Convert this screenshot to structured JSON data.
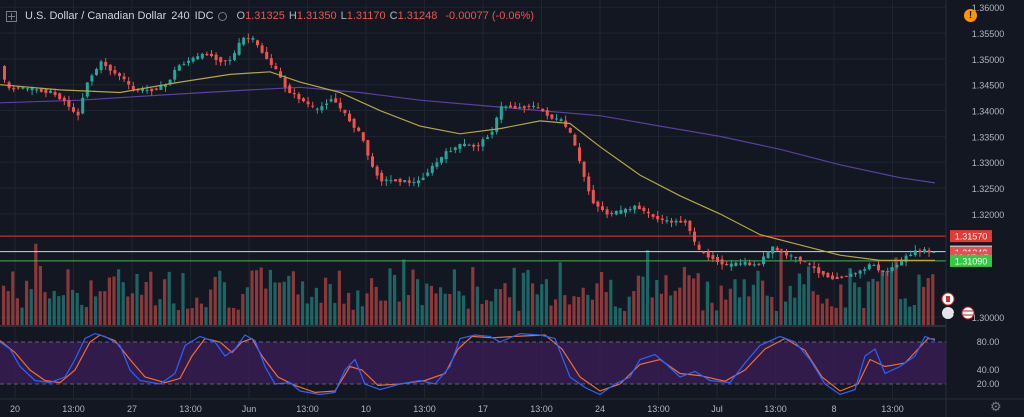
{
  "legend": {
    "symbol": "U.S. Dollar / Canadian Dollar",
    "interval": "240",
    "source": "IDC",
    "open_label": "O",
    "open": "1.31325",
    "high_label": "H",
    "high": "1.31350",
    "low_label": "L",
    "low": "1.31170",
    "close_label": "C",
    "close": "1.31248",
    "change": "-0.00077 (-0.06%)"
  },
  "alert_icon": "!",
  "colors": {
    "background": "#131722",
    "grid": "#1f2430",
    "up": "#26a69a",
    "down": "#ef5350",
    "ma_fast": "#b5a642",
    "ma_slow": "#5b3fa0",
    "stoch_k": "#2962ff",
    "stoch_d": "#ef6c35",
    "stoch_band": "#3b1d5a"
  },
  "icons": [
    "collapse-icon",
    "visibility-dot-icon",
    "alert-icon",
    "canada-flag-icon",
    "us-flag-icon",
    "gear-icon"
  ],
  "event_badges": [
    "4"
  ],
  "chart_data": {
    "type": "candlestick",
    "price_axis": {
      "ticks": [
        "1.36000",
        "1.35500",
        "1.35000",
        "1.34500",
        "1.34000",
        "1.33500",
        "1.33000",
        "1.32500",
        "1.32000",
        "1.30000"
      ],
      "labels": [
        {
          "text": "1.31570",
          "value": 1.3157,
          "color": "#e53935"
        },
        {
          "text": "1.31270",
          "value": 1.3127,
          "color": "#d1d4dc"
        },
        {
          "text": "1.31248",
          "value": 1.31248,
          "color": "#e05050"
        },
        {
          "text": "02:27:45",
          "value": 1.31155,
          "color": "#e05050"
        },
        {
          "text": "1.31090",
          "value": 1.3109,
          "color": "#2ecc40"
        }
      ],
      "range": [
        1.2983,
        1.3614
      ]
    },
    "time_axis": [
      "20",
      "13:00",
      "27",
      "13:00",
      "Jun",
      "13:00",
      "10",
      "13:00",
      "17",
      "13:00",
      "24",
      "13:00",
      "Jul",
      "13:00",
      "8",
      "13:00"
    ],
    "horizontal_lines": [
      {
        "value": 1.3157,
        "color": "#e53935"
      },
      {
        "value": 1.3127,
        "color": "#d1d4dc"
      },
      {
        "value": 1.3109,
        "color": "#4caf50"
      }
    ],
    "price_path": [
      [
        0,
        1.351
      ],
      [
        10,
        1.344
      ],
      [
        20,
        1.3445
      ],
      [
        40,
        1.344
      ],
      [
        55,
        1.3435
      ],
      [
        70,
        1.3415
      ],
      [
        80,
        1.3385
      ],
      [
        90,
        1.3455
      ],
      [
        105,
        1.3495
      ],
      [
        115,
        1.3475
      ],
      [
        125,
        1.3465
      ],
      [
        135,
        1.344
      ],
      [
        155,
        1.344
      ],
      [
        170,
        1.345
      ],
      [
        180,
        1.3485
      ],
      [
        195,
        1.35
      ],
      [
        210,
        1.351
      ],
      [
        225,
        1.3495
      ],
      [
        235,
        1.35
      ],
      [
        245,
        1.354
      ],
      [
        255,
        1.354
      ],
      [
        270,
        1.35
      ],
      [
        280,
        1.3475
      ],
      [
        290,
        1.344
      ],
      [
        305,
        1.342
      ],
      [
        320,
        1.34
      ],
      [
        335,
        1.3425
      ],
      [
        345,
        1.34
      ],
      [
        355,
        1.3375
      ],
      [
        365,
        1.335
      ],
      [
        375,
        1.329
      ],
      [
        385,
        1.3265
      ],
      [
        400,
        1.3265
      ],
      [
        420,
        1.326
      ],
      [
        435,
        1.329
      ],
      [
        450,
        1.332
      ],
      [
        465,
        1.3335
      ],
      [
        480,
        1.333
      ],
      [
        495,
        1.336
      ],
      [
        505,
        1.341
      ],
      [
        520,
        1.3405
      ],
      [
        535,
        1.341
      ],
      [
        545,
        1.34
      ],
      [
        555,
        1.3385
      ],
      [
        565,
        1.338
      ],
      [
        575,
        1.335
      ],
      [
        585,
        1.3285
      ],
      [
        595,
        1.3225
      ],
      [
        610,
        1.32
      ],
      [
        625,
        1.3205
      ],
      [
        640,
        1.3215
      ],
      [
        655,
        1.3195
      ],
      [
        670,
        1.3185
      ],
      [
        690,
        1.3185
      ],
      [
        700,
        1.313
      ],
      [
        715,
        1.3115
      ],
      [
        730,
        1.31
      ],
      [
        745,
        1.3105
      ],
      [
        760,
        1.31
      ],
      [
        775,
        1.3135
      ],
      [
        790,
        1.312
      ],
      [
        805,
        1.311
      ],
      [
        820,
        1.309
      ],
      [
        835,
        1.3075
      ],
      [
        850,
        1.308
      ],
      [
        865,
        1.309
      ],
      [
        875,
        1.3105
      ],
      [
        885,
        1.3085
      ],
      [
        895,
        1.3095
      ],
      [
        905,
        1.311
      ],
      [
        915,
        1.3125
      ],
      [
        925,
        1.313
      ],
      [
        935,
        1.3125
      ]
    ],
    "ma_fast_path": [
      [
        0,
        1.345
      ],
      [
        60,
        1.344
      ],
      [
        120,
        1.3435
      ],
      [
        180,
        1.3455
      ],
      [
        230,
        1.347
      ],
      [
        270,
        1.3475
      ],
      [
        300,
        1.3455
      ],
      [
        340,
        1.3435
      ],
      [
        380,
        1.34
      ],
      [
        420,
        1.337
      ],
      [
        460,
        1.3355
      ],
      [
        500,
        1.3365
      ],
      [
        540,
        1.338
      ],
      [
        570,
        1.3375
      ],
      [
        600,
        1.333
      ],
      [
        640,
        1.3275
      ],
      [
        680,
        1.3235
      ],
      [
        720,
        1.32
      ],
      [
        760,
        1.316
      ],
      [
        800,
        1.314
      ],
      [
        840,
        1.312
      ],
      [
        880,
        1.311
      ],
      [
        935,
        1.311
      ]
    ],
    "ma_slow_path": [
      [
        0,
        1.3415
      ],
      [
        80,
        1.342
      ],
      [
        160,
        1.343
      ],
      [
        250,
        1.344
      ],
      [
        300,
        1.3445
      ],
      [
        360,
        1.3435
      ],
      [
        420,
        1.342
      ],
      [
        480,
        1.341
      ],
      [
        540,
        1.34
      ],
      [
        600,
        1.339
      ],
      [
        660,
        1.337
      ],
      [
        720,
        1.335
      ],
      [
        780,
        1.3325
      ],
      [
        840,
        1.3295
      ],
      [
        900,
        1.327
      ],
      [
        935,
        1.326
      ]
    ],
    "stochastic": {
      "levels": [
        "80.00",
        "40.00",
        "20.00"
      ],
      "band": [
        20,
        80
      ],
      "k_path": [
        [
          0,
          80
        ],
        [
          10,
          70
        ],
        [
          20,
          45
        ],
        [
          35,
          25
        ],
        [
          50,
          22
        ],
        [
          65,
          30
        ],
        [
          75,
          55
        ],
        [
          85,
          85
        ],
        [
          95,
          92
        ],
        [
          105,
          88
        ],
        [
          120,
          75
        ],
        [
          130,
          40
        ],
        [
          140,
          25
        ],
        [
          160,
          20
        ],
        [
          175,
          35
        ],
        [
          185,
          75
        ],
        [
          200,
          88
        ],
        [
          215,
          80
        ],
        [
          225,
          60
        ],
        [
          235,
          70
        ],
        [
          245,
          90
        ],
        [
          255,
          82
        ],
        [
          265,
          45
        ],
        [
          275,
          20
        ],
        [
          290,
          22
        ],
        [
          300,
          10
        ],
        [
          320,
          5
        ],
        [
          335,
          8
        ],
        [
          345,
          40
        ],
        [
          355,
          55
        ],
        [
          365,
          20
        ],
        [
          380,
          12
        ],
        [
          400,
          20
        ],
        [
          420,
          25
        ],
        [
          435,
          20
        ],
        [
          450,
          45
        ],
        [
          460,
          85
        ],
        [
          475,
          90
        ],
        [
          490,
          88
        ],
        [
          500,
          80
        ],
        [
          520,
          92
        ],
        [
          540,
          90
        ],
        [
          555,
          85
        ],
        [
          570,
          30
        ],
        [
          585,
          15
        ],
        [
          600,
          5
        ],
        [
          615,
          20
        ],
        [
          630,
          30
        ],
        [
          640,
          55
        ],
        [
          655,
          62
        ],
        [
          665,
          50
        ],
        [
          680,
          30
        ],
        [
          695,
          38
        ],
        [
          710,
          25
        ],
        [
          730,
          22
        ],
        [
          745,
          50
        ],
        [
          760,
          75
        ],
        [
          780,
          88
        ],
        [
          795,
          80
        ],
        [
          810,
          55
        ],
        [
          825,
          20
        ],
        [
          840,
          5
        ],
        [
          855,
          12
        ],
        [
          865,
          60
        ],
        [
          875,
          70
        ],
        [
          885,
          35
        ],
        [
          900,
          45
        ],
        [
          915,
          60
        ],
        [
          925,
          88
        ],
        [
          935,
          82
        ]
      ],
      "d_path": [
        [
          0,
          82
        ],
        [
          15,
          65
        ],
        [
          30,
          40
        ],
        [
          45,
          25
        ],
        [
          60,
          22
        ],
        [
          75,
          40
        ],
        [
          90,
          80
        ],
        [
          100,
          90
        ],
        [
          115,
          82
        ],
        [
          130,
          55
        ],
        [
          145,
          30
        ],
        [
          165,
          22
        ],
        [
          180,
          28
        ],
        [
          192,
          60
        ],
        [
          205,
          85
        ],
        [
          220,
          80
        ],
        [
          232,
          65
        ],
        [
          242,
          80
        ],
        [
          252,
          85
        ],
        [
          262,
          60
        ],
        [
          278,
          30
        ],
        [
          295,
          18
        ],
        [
          315,
          8
        ],
        [
          335,
          10
        ],
        [
          350,
          45
        ],
        [
          362,
          40
        ],
        [
          378,
          18
        ],
        [
          400,
          20
        ],
        [
          425,
          25
        ],
        [
          445,
          35
        ],
        [
          458,
          70
        ],
        [
          472,
          88
        ],
        [
          492,
          86
        ],
        [
          515,
          88
        ],
        [
          545,
          90
        ],
        [
          562,
          70
        ],
        [
          580,
          30
        ],
        [
          600,
          10
        ],
        [
          620,
          20
        ],
        [
          640,
          48
        ],
        [
          660,
          55
        ],
        [
          680,
          35
        ],
        [
          700,
          32
        ],
        [
          725,
          24
        ],
        [
          745,
          40
        ],
        [
          765,
          70
        ],
        [
          785,
          85
        ],
        [
          805,
          68
        ],
        [
          822,
          30
        ],
        [
          840,
          10
        ],
        [
          858,
          20
        ],
        [
          870,
          55
        ],
        [
          885,
          45
        ],
        [
          905,
          50
        ],
        [
          928,
          85
        ],
        [
          935,
          84
        ]
      ]
    }
  }
}
